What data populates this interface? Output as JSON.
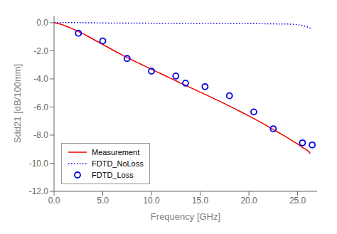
{
  "chart_data": {
    "type": "line",
    "title": "",
    "xlabel": "Frequency [GHz]",
    "ylabel": "Sdd21 [dB/100mm]",
    "xlim": [
      0,
      27
    ],
    "ylim": [
      -12,
      0.5
    ],
    "xticks": [
      {
        "value": 0,
        "label": "0.0"
      },
      {
        "value": 5,
        "label": "5.0"
      },
      {
        "value": 10,
        "label": "10.0"
      },
      {
        "value": 15,
        "label": "15.0"
      },
      {
        "value": 20,
        "label": "20.0"
      },
      {
        "value": 25,
        "label": "25.0"
      }
    ],
    "yticks": [
      {
        "value": 0,
        "label": "0.0"
      },
      {
        "value": -2,
        "label": "-2.0"
      },
      {
        "value": -4,
        "label": "-4.0"
      },
      {
        "value": -6,
        "label": "-6.0"
      },
      {
        "value": -8,
        "label": "-8.0"
      },
      {
        "value": -10,
        "label": "-10.0"
      },
      {
        "value": -12,
        "label": "-12.0"
      }
    ],
    "grid": false,
    "legend": "lower left",
    "series": [
      {
        "name": "Measurement",
        "color": "#EE0000",
        "line_style": "solid",
        "x": [
          0.0,
          0.3,
          0.6,
          1.0,
          1.5,
          2.0,
          2.5,
          3.0,
          3.5,
          4.0,
          4.5,
          5.0,
          5.5,
          6.0,
          6.5,
          7.0,
          7.5,
          8.0,
          8.5,
          9.0,
          9.5,
          10.0,
          10.5,
          11.0,
          11.5,
          12.0,
          12.5,
          13.0,
          13.5,
          14.0,
          14.5,
          15.0,
          15.5,
          16.0,
          16.5,
          17.0,
          17.5,
          18.0,
          18.5,
          19.0,
          19.5,
          20.0,
          20.5,
          21.0,
          21.5,
          22.0,
          22.5,
          23.0,
          23.5,
          24.0,
          24.5,
          25.0,
          25.3,
          25.6,
          25.9,
          26.1,
          26.3
        ],
        "values": [
          0.0,
          -0.04,
          -0.09,
          -0.18,
          -0.32,
          -0.47,
          -0.63,
          -0.8,
          -0.98,
          -1.17,
          -1.36,
          -1.55,
          -1.74,
          -1.93,
          -2.12,
          -2.3,
          -2.48,
          -2.65,
          -2.82,
          -2.98,
          -3.15,
          -3.31,
          -3.48,
          -3.64,
          -3.8,
          -3.97,
          -4.13,
          -4.3,
          -4.46,
          -4.62,
          -4.78,
          -4.95,
          -5.1,
          -5.26,
          -5.43,
          -5.59,
          -5.76,
          -5.93,
          -6.1,
          -6.28,
          -6.46,
          -6.63,
          -6.82,
          -7.01,
          -7.2,
          -7.4,
          -7.6,
          -7.8,
          -8.0,
          -8.2,
          -8.42,
          -8.63,
          -8.78,
          -8.92,
          -9.05,
          -9.15,
          -9.3
        ]
      },
      {
        "name": "FDTD_NoLoss",
        "color": "#0000EE",
        "line_style": "dotted",
        "x": [
          0.0,
          0.5,
          1.0,
          2.0,
          3.0,
          4.0,
          5.0,
          6.0,
          7.0,
          8.0,
          9.0,
          10.0,
          11.0,
          12.0,
          13.0,
          14.0,
          15.0,
          16.0,
          17.0,
          18.0,
          19.0,
          20.0,
          21.0,
          22.0,
          23.0,
          24.0,
          24.5,
          25.0,
          25.5,
          26.0,
          26.5
        ],
        "values": [
          0.02,
          0.01,
          0.01,
          0.01,
          0.0,
          -0.01,
          -0.02,
          -0.03,
          -0.03,
          -0.03,
          -0.03,
          -0.04,
          -0.04,
          -0.04,
          -0.04,
          -0.05,
          -0.05,
          -0.05,
          -0.05,
          -0.06,
          -0.06,
          -0.07,
          -0.07,
          -0.08,
          -0.09,
          -0.1,
          -0.12,
          -0.14,
          -0.2,
          -0.3,
          -0.45
        ]
      },
      {
        "name": "FDTD_Loss",
        "color": "#0000EE",
        "line_style": "none",
        "marker": "circle",
        "x": [
          2.5,
          5.0,
          7.5,
          10.0,
          12.5,
          13.5,
          15.5,
          18.0,
          20.5,
          22.5,
          25.5,
          26.5
        ],
        "values": [
          -0.75,
          -1.3,
          -2.55,
          -3.45,
          -3.8,
          -4.3,
          -4.55,
          -5.2,
          -6.35,
          -7.55,
          -8.55,
          -8.7
        ]
      }
    ]
  }
}
